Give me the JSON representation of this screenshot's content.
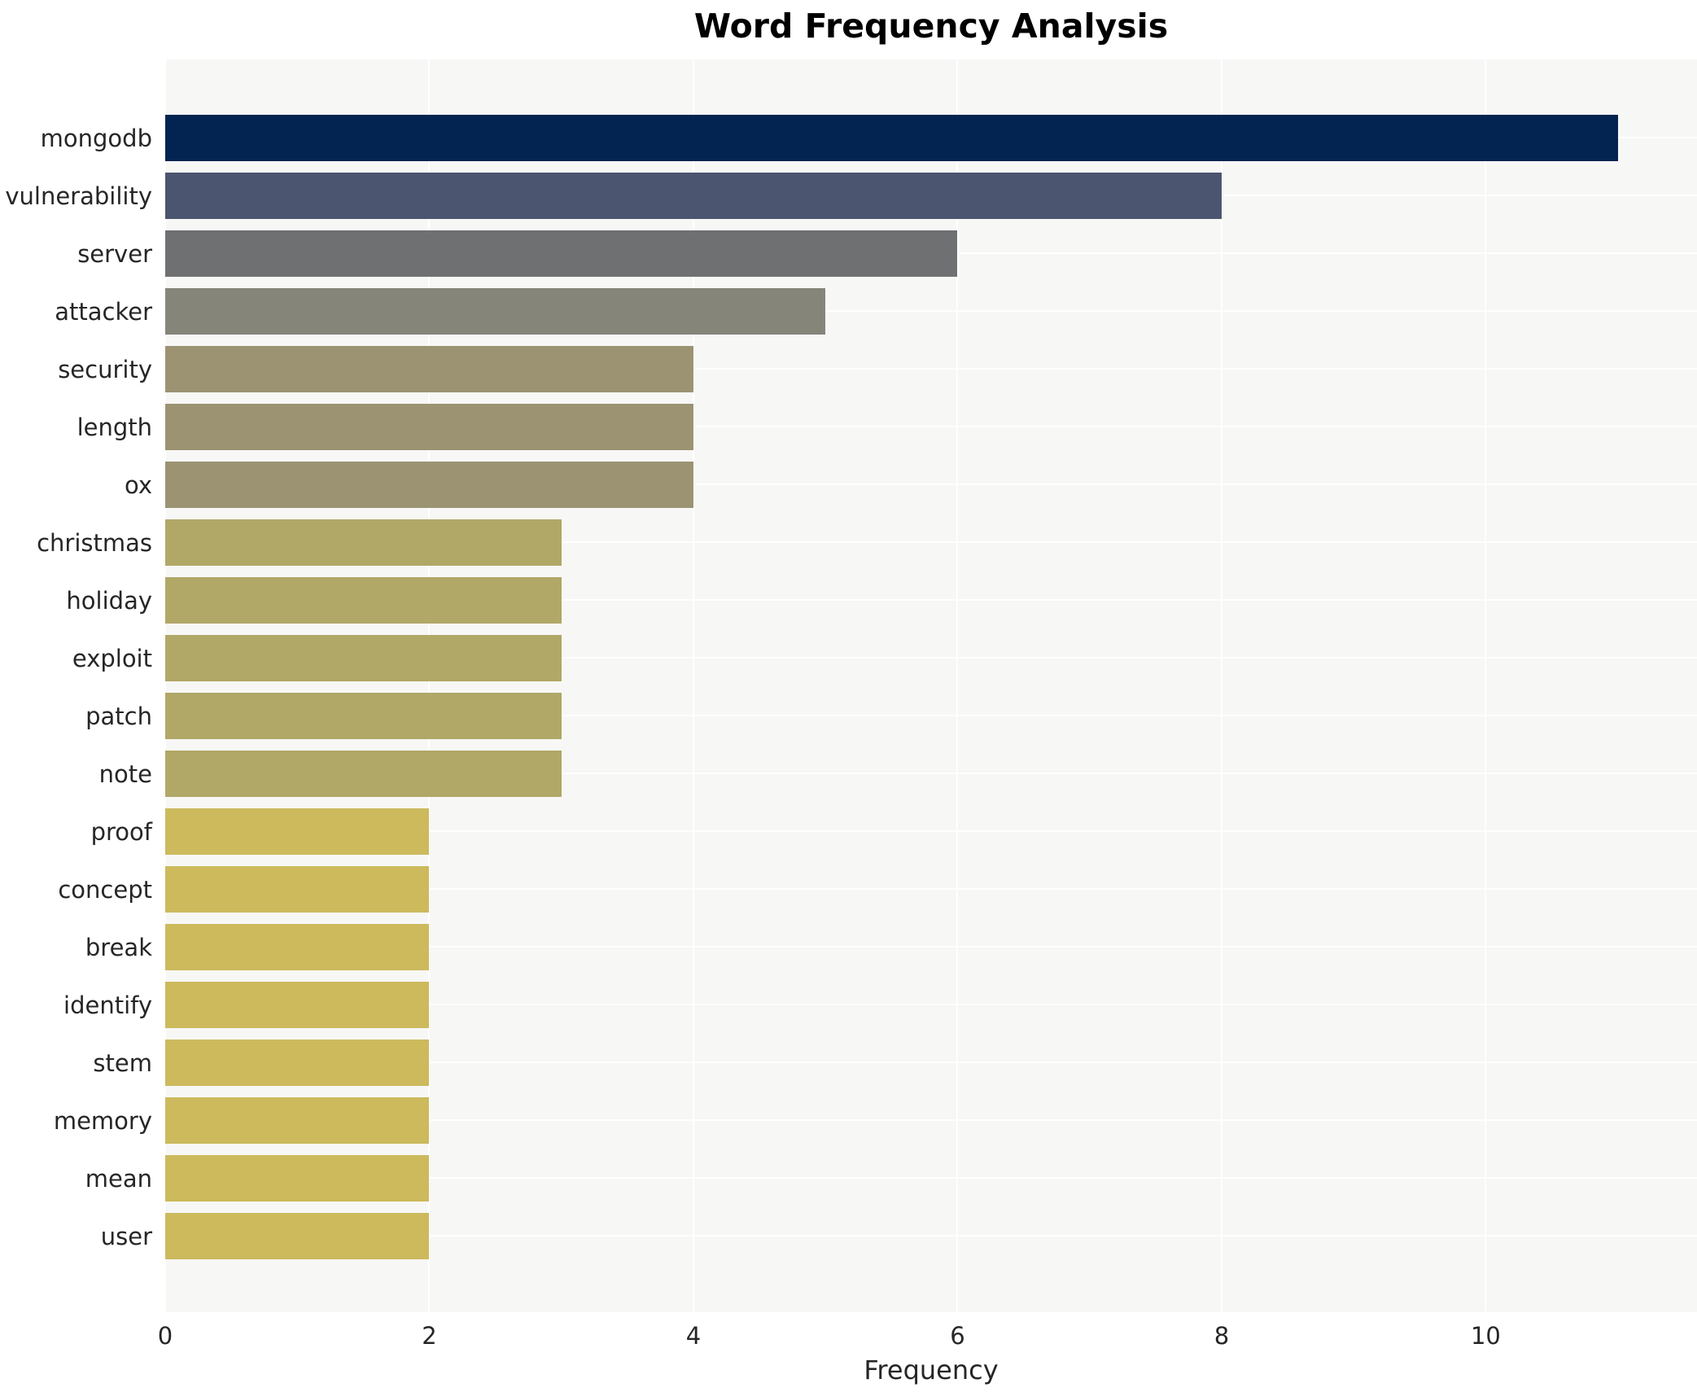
{
  "title": "Word Frequency Analysis",
  "chart_data": {
    "type": "bar",
    "orientation": "horizontal",
    "title": "Word Frequency Analysis",
    "xlabel": "Frequency",
    "ylabel": "",
    "categories": [
      "mongodb",
      "vulnerability",
      "server",
      "attacker",
      "security",
      "length",
      "ox",
      "christmas",
      "holiday",
      "exploit",
      "patch",
      "note",
      "proof",
      "concept",
      "break",
      "identify",
      "stem",
      "memory",
      "mean",
      "user"
    ],
    "values": [
      11,
      8,
      6,
      5,
      4,
      4,
      4,
      3,
      3,
      3,
      3,
      3,
      2,
      2,
      2,
      2,
      2,
      2,
      2,
      2
    ],
    "bar_colors": [
      "#032450",
      "#4b556f",
      "#6f7072",
      "#86857a",
      "#9b9372",
      "#9b9372",
      "#9b9372",
      "#b1a767",
      "#b1a767",
      "#b1a767",
      "#b1a767",
      "#b1a767",
      "#ccba5d",
      "#ccba5d",
      "#ccba5d",
      "#ccba5d",
      "#ccba5d",
      "#ccba5d",
      "#ccba5d",
      "#ccba5d"
    ],
    "colormap": "cividis (dark navy = high frequency, khaki yellow = low frequency)",
    "xlim": [
      0,
      11.6
    ],
    "xticks": [
      0,
      2,
      4,
      6,
      8,
      10
    ],
    "xtick_labels": [
      "0",
      "2",
      "4",
      "6",
      "8",
      "10"
    ],
    "grid": true,
    "legend": false,
    "plot_background": "#f7f7f6",
    "gridline_color": "#ffffff"
  }
}
